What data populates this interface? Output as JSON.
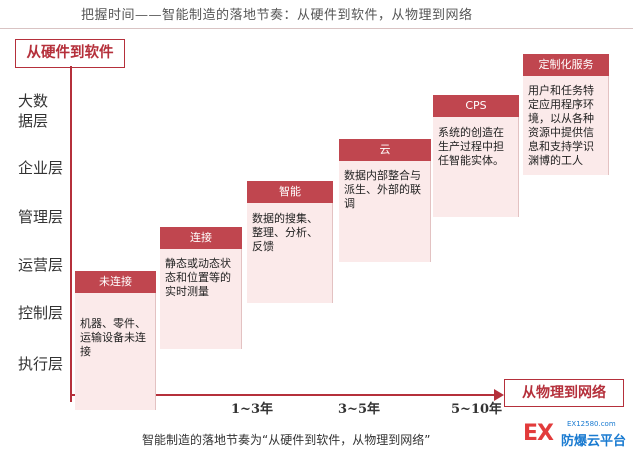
{
  "header": {
    "title": "把握时间——智能制造的落地节奏：从硬件到软件，从物理到网络"
  },
  "axes": {
    "y_label": "从硬件到软件",
    "x_label": "从物理到网络"
  },
  "layers": [
    "大数据层",
    "企业层",
    "管理层",
    "运营层",
    "控制层",
    "执行层"
  ],
  "steps": [
    {
      "title": "未连接",
      "text": "机器、零件、运输设备未连接"
    },
    {
      "title": "连接",
      "text": "静态或动态状态和位置等的实时测量"
    },
    {
      "title": "智能",
      "text": "数据的搜集、整理、分析、反馈"
    },
    {
      "title": "云",
      "text": "数据内部整合与派生、外部的联调"
    },
    {
      "title": "CPS",
      "text": "系统的创造在生产过程中担任智能实体。"
    },
    {
      "title": "定制化服务",
      "text": "用户和任务特定应用程序环境，以从各种资源中提供信息和支持学识渊博的工人"
    }
  ],
  "ticks": [
    "1~3年",
    "3~5年",
    "5~10年"
  ],
  "caption": "智能制造的落地节奏为“从硬件到软件，从物理到网络”",
  "watermark": {
    "mark": "EX",
    "url": "EX12580.com",
    "name": "防爆云平台"
  },
  "colors": {
    "accent": "#b5303b",
    "step_head": "#c0464f",
    "step_body": "#fbeaea"
  }
}
